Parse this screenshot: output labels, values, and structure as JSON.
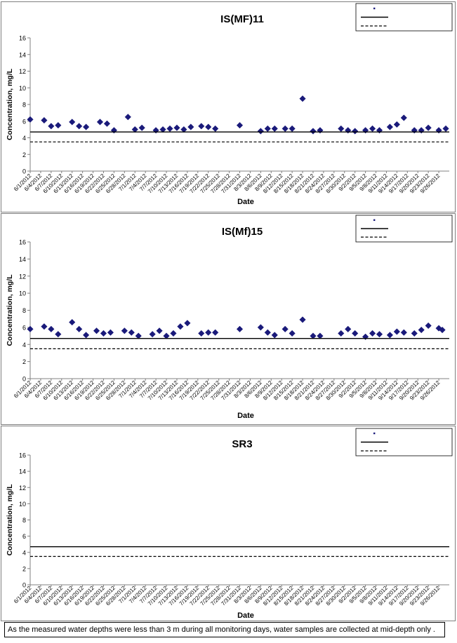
{
  "footnote": "As the measured water depths were less than 3 m during all monitoring days, water samples are collected at mid-depth only .",
  "colors": {
    "marker": "#1a1a7a",
    "line": "#000000",
    "frame": "#7f7f7f"
  },
  "dates": [
    "6/1/2012",
    "6/4/2012",
    "6/7/2012",
    "6/10/2012",
    "6/13/2012",
    "6/16/2012",
    "6/19/2012",
    "6/22/2012",
    "6/25/2012",
    "6/28/2012",
    "7/1/2012",
    "7/4/2012",
    "7/7/2012",
    "7/10/2012",
    "7/13/2012",
    "7/16/2012",
    "7/19/2012",
    "7/22/2012",
    "7/25/2012",
    "7/28/2012",
    "7/31/2012",
    "8/3/2012",
    "8/6/2012",
    "8/9/2012",
    "8/12/2012",
    "8/15/2012",
    "8/18/2012",
    "8/21/2012",
    "8/24/2012",
    "8/27/2012",
    "8/30/2012",
    "9/2/2012",
    "9/5/2012",
    "9/8/2012",
    "9/11/2012",
    "9/14/2012",
    "9/17/2012",
    "9/20/2012",
    "9/23/2012",
    "9/26/2012"
  ],
  "chart_data": [
    {
      "type": "scatter",
      "title": "IS(MF)11",
      "xlabel": "Date",
      "ylabel": "Concentration, mg/L",
      "ylim": [
        0,
        16
      ],
      "yticks": [
        0,
        2,
        4,
        6,
        8,
        10,
        12,
        14,
        16
      ],
      "xlim": [
        "2012-06-01",
        "2012-09-29"
      ],
      "legend": "top-right",
      "series": [
        {
          "kind": "points",
          "points": [
            [
              "2012-06-01",
              6.2
            ],
            [
              "2012-06-05",
              6.1
            ],
            [
              "2012-06-07",
              5.4
            ],
            [
              "2012-06-09",
              5.5
            ],
            [
              "2012-06-13",
              5.9
            ],
            [
              "2012-06-15",
              5.4
            ],
            [
              "2012-06-17",
              5.3
            ],
            [
              "2012-06-21",
              5.9
            ],
            [
              "2012-06-23",
              5.7
            ],
            [
              "2012-06-25",
              4.9
            ],
            [
              "2012-06-29",
              6.5
            ],
            [
              "2012-07-01",
              5.0
            ],
            [
              "2012-07-03",
              5.2
            ],
            [
              "2012-07-07",
              4.9
            ],
            [
              "2012-07-09",
              5.0
            ],
            [
              "2012-07-11",
              5.1
            ],
            [
              "2012-07-13",
              5.2
            ],
            [
              "2012-07-15",
              5.0
            ],
            [
              "2012-07-17",
              5.3
            ],
            [
              "2012-07-20",
              5.4
            ],
            [
              "2012-07-22",
              5.3
            ],
            [
              "2012-07-24",
              5.1
            ],
            [
              "2012-07-31",
              5.5
            ],
            [
              "2012-08-06",
              4.8
            ],
            [
              "2012-08-08",
              5.1
            ],
            [
              "2012-08-10",
              5.1
            ],
            [
              "2012-08-13",
              5.1
            ],
            [
              "2012-08-15",
              5.1
            ],
            [
              "2012-08-18",
              8.7
            ],
            [
              "2012-08-21",
              4.8
            ],
            [
              "2012-08-23",
              4.9
            ],
            [
              "2012-08-29",
              5.1
            ],
            [
              "2012-08-31",
              4.9
            ],
            [
              "2012-09-02",
              4.8
            ],
            [
              "2012-09-05",
              4.9
            ],
            [
              "2012-09-07",
              5.1
            ],
            [
              "2012-09-09",
              4.9
            ],
            [
              "2012-09-12",
              5.3
            ],
            [
              "2012-09-14",
              5.6
            ],
            [
              "2012-09-16",
              6.4
            ],
            [
              "2012-09-19",
              4.9
            ],
            [
              "2012-09-21",
              4.9
            ],
            [
              "2012-09-23",
              5.2
            ],
            [
              "2012-09-26",
              4.9
            ],
            [
              "2012-09-28",
              5.1
            ]
          ]
        },
        {
          "kind": "hline",
          "style": "solid",
          "y": 4.7
        },
        {
          "kind": "hline",
          "style": "dashed",
          "y": 3.5
        }
      ]
    },
    {
      "type": "scatter",
      "title": "IS(Mf)15",
      "xlabel": "Date",
      "ylabel": "Concentration, mg/L",
      "ylim": [
        0,
        16
      ],
      "yticks": [
        0,
        2,
        4,
        6,
        8,
        10,
        12,
        14,
        16
      ],
      "xlim": [
        "2012-06-01",
        "2012-09-29"
      ],
      "legend": "top-right",
      "series": [
        {
          "kind": "points",
          "points": [
            [
              "2012-06-01",
              5.8
            ],
            [
              "2012-06-05",
              6.1
            ],
            [
              "2012-06-07",
              5.8
            ],
            [
              "2012-06-09",
              5.2
            ],
            [
              "2012-06-13",
              6.6
            ],
            [
              "2012-06-15",
              5.8
            ],
            [
              "2012-06-17",
              5.1
            ],
            [
              "2012-06-20",
              5.6
            ],
            [
              "2012-06-22",
              5.3
            ],
            [
              "2012-06-24",
              5.4
            ],
            [
              "2012-06-28",
              5.6
            ],
            [
              "2012-06-30",
              5.4
            ],
            [
              "2012-07-02",
              5.0
            ],
            [
              "2012-07-06",
              5.2
            ],
            [
              "2012-07-08",
              5.6
            ],
            [
              "2012-07-10",
              5.0
            ],
            [
              "2012-07-12",
              5.3
            ],
            [
              "2012-07-14",
              6.1
            ],
            [
              "2012-07-16",
              6.5
            ],
            [
              "2012-07-20",
              5.3
            ],
            [
              "2012-07-22",
              5.4
            ],
            [
              "2012-07-24",
              5.4
            ],
            [
              "2012-07-31",
              5.8
            ],
            [
              "2012-08-06",
              6.0
            ],
            [
              "2012-08-08",
              5.4
            ],
            [
              "2012-08-10",
              5.1
            ],
            [
              "2012-08-13",
              5.8
            ],
            [
              "2012-08-15",
              5.3
            ],
            [
              "2012-08-18",
              6.9
            ],
            [
              "2012-08-21",
              5.0
            ],
            [
              "2012-08-23",
              5.0
            ],
            [
              "2012-08-29",
              5.3
            ],
            [
              "2012-08-31",
              5.8
            ],
            [
              "2012-09-02",
              5.3
            ],
            [
              "2012-09-05",
              4.9
            ],
            [
              "2012-09-07",
              5.3
            ],
            [
              "2012-09-09",
              5.2
            ],
            [
              "2012-09-12",
              5.1
            ],
            [
              "2012-09-14",
              5.5
            ],
            [
              "2012-09-16",
              5.4
            ],
            [
              "2012-09-19",
              5.3
            ],
            [
              "2012-09-21",
              5.7
            ],
            [
              "2012-09-23",
              6.2
            ],
            [
              "2012-09-26",
              5.9
            ],
            [
              "2012-09-27",
              5.7
            ]
          ]
        },
        {
          "kind": "hline",
          "style": "solid",
          "y": 4.7
        },
        {
          "kind": "hline",
          "style": "dashed",
          "y": 3.5
        }
      ]
    },
    {
      "type": "scatter",
      "title": "SR3",
      "xlabel": "Date",
      "ylabel": "Concentration, mg/L",
      "ylim": [
        0,
        16
      ],
      "yticks": [
        0,
        2,
        4,
        6,
        8,
        10,
        12,
        14,
        16
      ],
      "xlim": [
        "2012-06-01",
        "2012-09-29"
      ],
      "legend": "top-right",
      "series": [
        {
          "kind": "points",
          "points": []
        },
        {
          "kind": "hline",
          "style": "solid",
          "y": 4.7
        },
        {
          "kind": "hline",
          "style": "dashed",
          "y": 3.5
        }
      ]
    }
  ]
}
